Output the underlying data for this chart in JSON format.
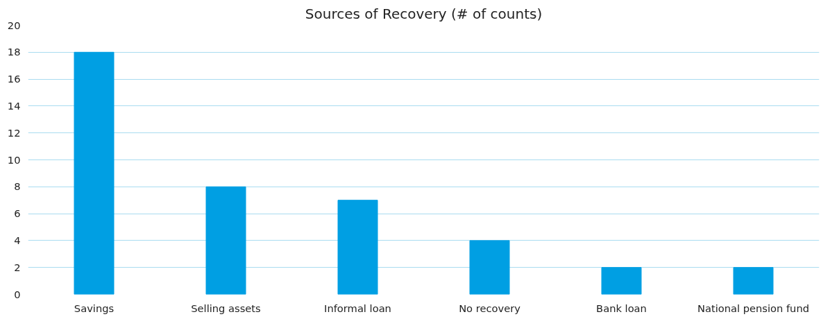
{
  "chart_data": {
    "type": "bar",
    "title": "Sources of Recovery (# of counts)",
    "categories": [
      "Savings",
      "Selling assets",
      "Informal loan",
      "No recovery",
      "Bank loan",
      "National pension fund"
    ],
    "values": [
      18,
      8,
      7,
      4,
      2,
      2
    ],
    "color": "#009fe3",
    "ylim": [
      0,
      20
    ],
    "yticks": [
      0,
      2,
      4,
      6,
      8,
      10,
      12,
      14,
      16,
      18,
      20
    ],
    "grid": "y"
  }
}
